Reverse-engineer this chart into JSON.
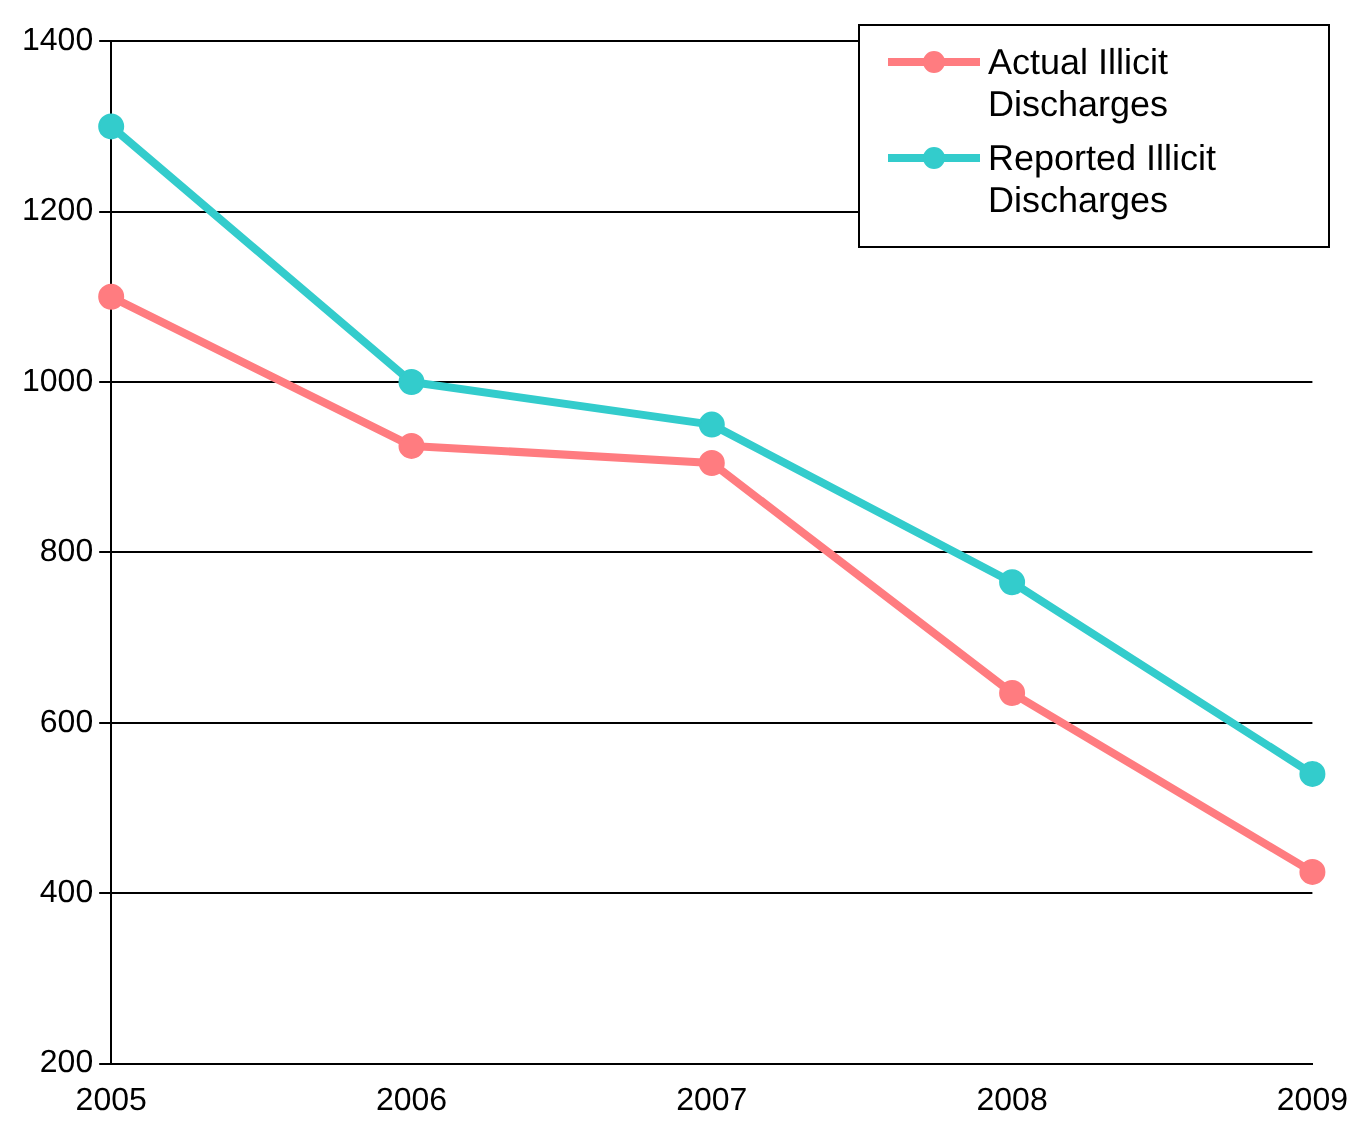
{
  "chart_data": {
    "type": "line",
    "categories": [
      "2005",
      "2006",
      "2007",
      "2008",
      "2009"
    ],
    "series": [
      {
        "name": "Actual Illicit Discharges",
        "color": "#ff7c80",
        "values": [
          1100,
          925,
          905,
          635,
          425
        ]
      },
      {
        "name": "Reported Illicit Discharges",
        "color": "#33cccc",
        "values": [
          1300,
          1000,
          950,
          765,
          540
        ]
      }
    ],
    "ylim": [
      200,
      1400
    ],
    "yticks": [
      200,
      400,
      600,
      800,
      1000,
      1200,
      1400
    ],
    "grid": "y",
    "legend": "top right",
    "marker": "circle",
    "line_style": "solid"
  }
}
